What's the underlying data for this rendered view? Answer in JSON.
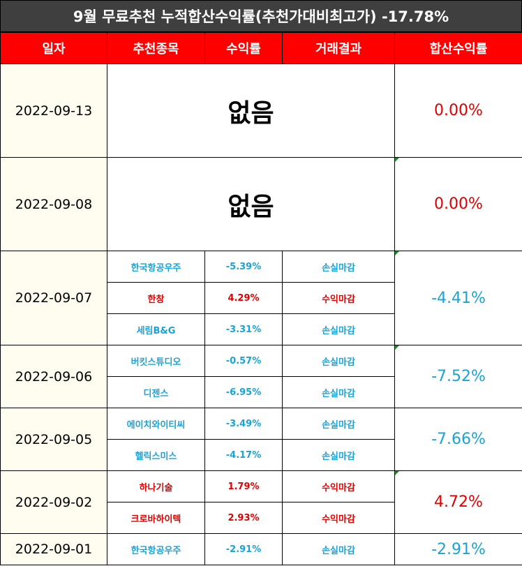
{
  "title": "9월 무료추천 누적합산수익률(추천가대비최고가) -17.78%",
  "headers": [
    "일자",
    "추천종목",
    "수익률",
    "거래결과",
    "합산수익률"
  ],
  "rows": [
    {
      "date": "2022-09-13",
      "none": "없음",
      "total": "0.00%"
    },
    {
      "date": "2022-09-08",
      "none": "없음",
      "total": "0.00%"
    },
    {
      "date": "2022-09-07",
      "total": "-4.41%",
      "items": [
        {
          "stock": "한국항공우주",
          "rate": "-5.39%",
          "result": "손실마감"
        },
        {
          "stock": "한창",
          "rate": "4.29%",
          "result": "수익마감"
        },
        {
          "stock": "세림B&G",
          "rate": "-3.31%",
          "result": "손실마감"
        }
      ]
    },
    {
      "date": "2022-09-06",
      "total": "-7.52%",
      "items": [
        {
          "stock": "버킷스튜디오",
          "rate": "-0.57%",
          "result": "손실마감"
        },
        {
          "stock": "디젠스",
          "rate": "-6.95%",
          "result": "손실마감"
        }
      ]
    },
    {
      "date": "2022-09-05",
      "total": "-7.66%",
      "items": [
        {
          "stock": "에이치와이티씨",
          "rate": "-3.49%",
          "result": "손실마감"
        },
        {
          "stock": "헬릭스미스",
          "rate": "-4.17%",
          "result": "손실마감"
        }
      ]
    },
    {
      "date": "2022-09-02",
      "total": "4.72%",
      "items": [
        {
          "stock": "하나기술",
          "rate": "1.79%",
          "result": "수익마감"
        },
        {
          "stock": "크로바하이텍",
          "rate": "2.93%",
          "result": "수익마감"
        }
      ]
    },
    {
      "date": "2022-09-01",
      "total": "-2.91%",
      "items": [
        {
          "stock": "한국항공우주",
          "rate": "-2.91%",
          "result": "손실마감"
        }
      ]
    }
  ],
  "colors": {
    "gain": "#e00000",
    "loss": "#1aa3d6",
    "header_bg": "#ff0000",
    "title_bg": "#3f3f3f"
  }
}
